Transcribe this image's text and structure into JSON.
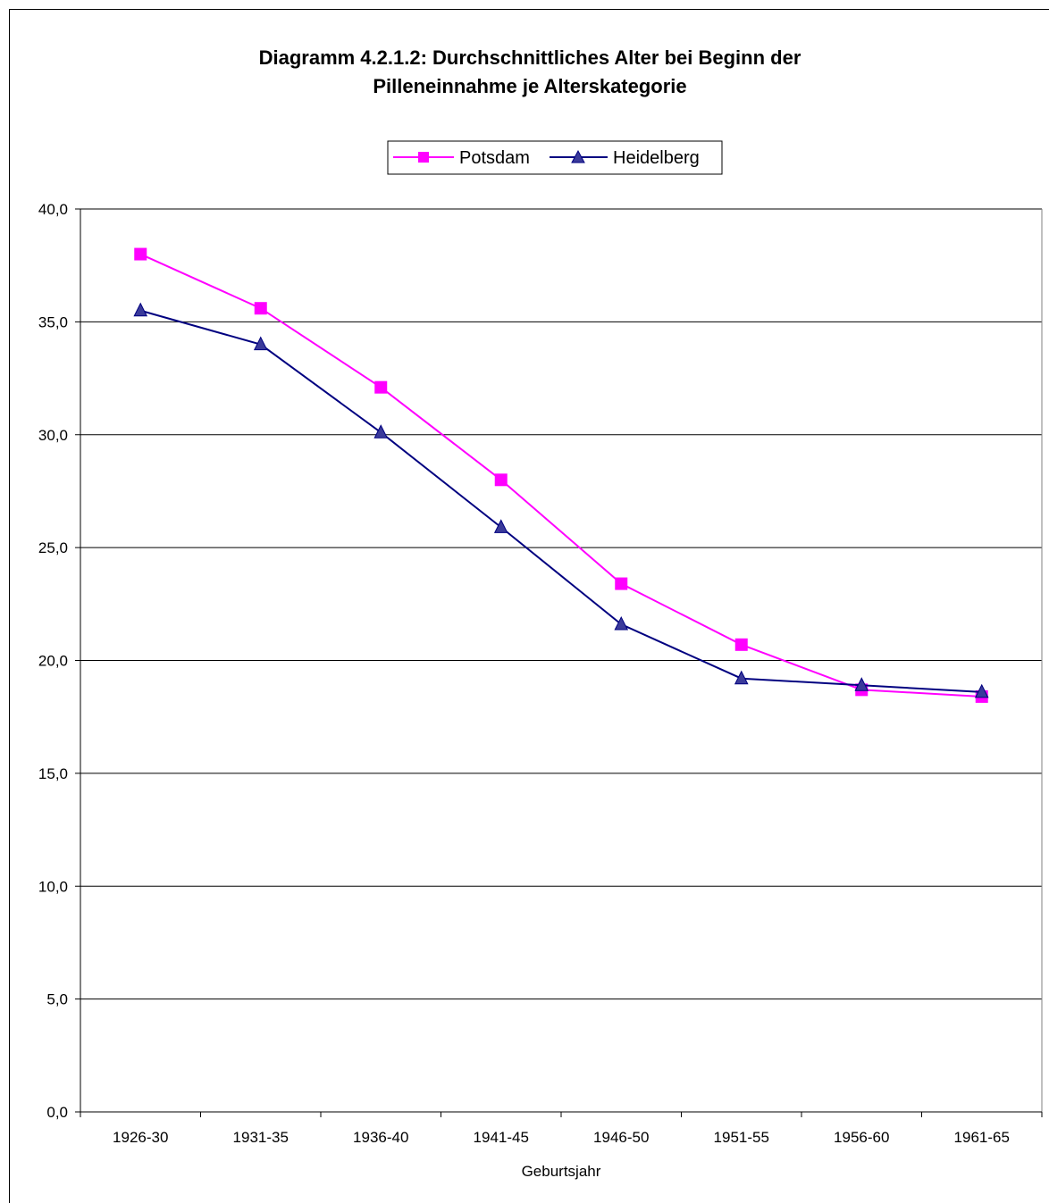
{
  "chart_data": {
    "type": "line",
    "title": [
      "Diagramm 4.2.1.2: Durchschnittliches Alter bei Beginn der",
      "Pilleneinnahme je Alterskategorie"
    ],
    "xlabel": "Geburtsjahr",
    "ylabel": "",
    "categories": [
      "1926-30",
      "1931-35",
      "1936-40",
      "1941-45",
      "1946-50",
      "1951-55",
      "1956-60",
      "1961-65"
    ],
    "ylim": [
      0,
      40
    ],
    "yticks": [
      "0,0",
      "5,0",
      "10,0",
      "15,0",
      "20,0",
      "25,0",
      "30,0",
      "35,0",
      "40,0"
    ],
    "grid": true,
    "legend_position": "top-center",
    "series": [
      {
        "name": "Potsdam",
        "color": "#ff00ff",
        "marker": "square",
        "values": [
          38.0,
          35.6,
          32.1,
          28.0,
          23.4,
          20.7,
          18.7,
          18.4
        ]
      },
      {
        "name": "Heidelberg",
        "color": "#000080",
        "marker": "triangle",
        "values": [
          35.5,
          34.0,
          30.1,
          25.9,
          21.6,
          19.2,
          18.9,
          18.6
        ]
      }
    ]
  }
}
